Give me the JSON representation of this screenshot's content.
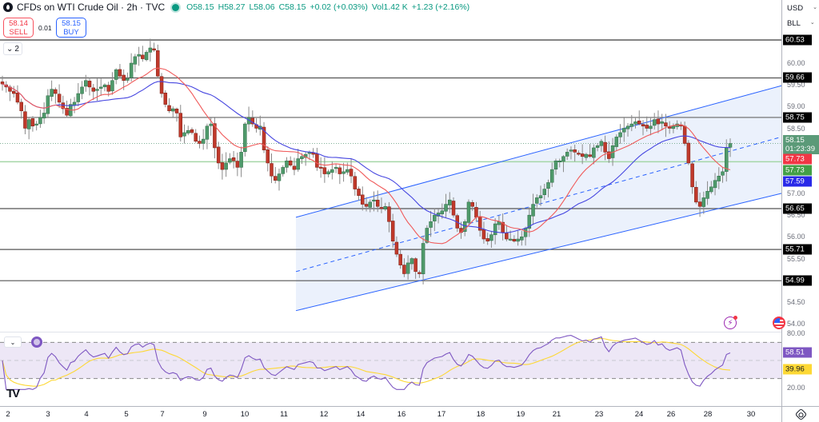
{
  "header": {
    "title": "CFDs on WTI Crude Oil · 2h · TVC",
    "ohlc": {
      "open": "O58.15",
      "high": "H58.27",
      "low": "L58.06",
      "close": "C58.15",
      "change": "+0.02 (+0.03%)",
      "volume": "Vol1.42 K",
      "vol_change": "+1.23 (+2.16%)"
    }
  },
  "trade": {
    "sell_price": "58.14",
    "sell_label": "SELL",
    "spread": "0.01",
    "buy_price": "58.15",
    "buy_label": "BUY"
  },
  "collapse": {
    "count": "2"
  },
  "price_axis": {
    "currency": "USD",
    "unit": "BLL",
    "ticks": [
      "60.00",
      "59.50",
      "59.00",
      "58.50",
      "57.00",
      "56.50",
      "56.00",
      "55.50",
      "54.50",
      "54.00"
    ],
    "labels": [
      {
        "value": "60.53",
        "color": "#000000"
      },
      {
        "value": "59.66",
        "color": "#000000"
      },
      {
        "value": "58.75",
        "color": "#000000"
      },
      {
        "value": "58.15",
        "sub": "01:23:39",
        "color": "#5b9a78"
      },
      {
        "value": "57.73",
        "color": "#f23645"
      },
      {
        "value": "57.73",
        "color": "#43a047"
      },
      {
        "value": "57.59",
        "color": "#2a2ae8"
      },
      {
        "value": "56.65",
        "color": "#000000"
      },
      {
        "value": "55.71",
        "color": "#000000"
      },
      {
        "value": "54.99",
        "color": "#000000"
      }
    ]
  },
  "rsi_axis": {
    "ticks": [
      "80.00",
      "20.00"
    ],
    "labels": [
      {
        "value": "58.51",
        "color": "#7e57c2",
        "text_color": "#ffffff"
      },
      {
        "value": "39.96",
        "color": "#fdd835",
        "text_color": "#131722"
      }
    ]
  },
  "time_axis": [
    "2",
    "3",
    "4",
    "5",
    "7",
    "9",
    "10",
    "11",
    "12",
    "14",
    "16",
    "17",
    "18",
    "19",
    "21",
    "23",
    "24",
    "26",
    "28",
    "30"
  ],
  "colors": {
    "up": "#4f9a6b",
    "down": "#c0392b",
    "ma_fast": "#f05a5a",
    "ma_slow": "#4646e0",
    "channel": "#2962ff",
    "channel_fill": "#e8eefc",
    "rsi": "#7e57c2",
    "rsi_ma": "#fdd835",
    "rsi_band": "#ede7f6"
  },
  "chart_data": {
    "type": "candlestick",
    "title": "CFDs on WTI Crude Oil · 2h · TVC",
    "xlabel": "",
    "ylabel": "USD / BLL",
    "ylim": [
      53.8,
      60.9
    ],
    "x_ticks": [
      "2",
      "3",
      "4",
      "5",
      "7",
      "9",
      "10",
      "11",
      "12",
      "14",
      "16",
      "17",
      "18",
      "19",
      "21",
      "23",
      "24",
      "26",
      "28",
      "30"
    ],
    "last": {
      "open": 58.15,
      "high": 58.27,
      "low": 58.06,
      "close": 58.15,
      "change": 0.02,
      "change_pct": 0.03
    },
    "horizontal_levels": [
      60.53,
      59.66,
      58.75,
      56.65,
      55.71,
      54.99
    ],
    "current_price_line": 58.15,
    "green_level": 57.73,
    "moving_averages": [
      {
        "name": "MA fast (red)",
        "last": 57.73
      },
      {
        "name": "MA slow (blue)",
        "last": 57.59
      }
    ],
    "channel": {
      "upper": [
        [
          370,
          56.45
        ],
        [
          977,
          59.48
        ]
      ],
      "middle": [
        [
          370,
          55.2
        ],
        [
          977,
          58.3
        ]
      ],
      "lower": [
        [
          370,
          54.3
        ],
        [
          977,
          57.0
        ]
      ]
    },
    "closes_approx": [
      59.52,
      59.45,
      59.35,
      59.3,
      59.1,
      58.9,
      58.5,
      58.7,
      58.55,
      58.6,
      58.75,
      58.85,
      59.25,
      59.4,
      59.3,
      59.1,
      58.95,
      58.8,
      59.05,
      59.1,
      59.3,
      59.45,
      59.6,
      59.45,
      59.35,
      59.4,
      59.45,
      59.5,
      59.35,
      59.6,
      59.85,
      59.7,
      59.6,
      59.65,
      60.0,
      60.15,
      60.2,
      60.1,
      60.25,
      60.35,
      60.3,
      59.7,
      59.3,
      59.05,
      58.9,
      58.95,
      58.85,
      58.3,
      58.4,
      58.45,
      58.4,
      58.2,
      58.15,
      58.25,
      58.55,
      58.6,
      58.05,
      57.7,
      57.55,
      57.7,
      57.8,
      57.75,
      57.6,
      57.95,
      58.6,
      58.75,
      58.6,
      58.5,
      58.55,
      58.0,
      57.7,
      57.4,
      57.3,
      57.45,
      57.6,
      57.75,
      57.65,
      57.55,
      57.8,
      57.85,
      57.9,
      57.95,
      57.9,
      57.6,
      57.6,
      57.45,
      57.5,
      57.55,
      57.6,
      57.45,
      57.5,
      57.55,
      57.4,
      57.1,
      56.95,
      56.75,
      56.7,
      56.8,
      56.85,
      56.7,
      56.65,
      56.7,
      56.35,
      55.9,
      55.6,
      55.35,
      55.15,
      55.4,
      55.5,
      55.2,
      55.15,
      55.85,
      56.2,
      56.35,
      56.5,
      56.55,
      56.6,
      56.75,
      56.85,
      56.5,
      56.2,
      56.1,
      56.35,
      56.8,
      56.7,
      56.45,
      56.15,
      55.95,
      55.9,
      56.05,
      56.3,
      56.35,
      56.1,
      55.95,
      55.95,
      55.9,
      55.95,
      56.0,
      56.2,
      56.5,
      56.75,
      56.9,
      56.95,
      57.1,
      57.25,
      57.55,
      57.75,
      57.75,
      57.85,
      57.95,
      58.0,
      57.95,
      57.9,
      57.85,
      57.9,
      57.85,
      58.05,
      58.1,
      58.2,
      57.95,
      57.8,
      58.1,
      58.3,
      58.4,
      58.5,
      58.55,
      58.6,
      58.65,
      58.6,
      58.55,
      58.5,
      58.55,
      58.7,
      58.6,
      58.65,
      58.55,
      58.5,
      58.55,
      58.6,
      58.55,
      58.15,
      57.7,
      57.15,
      56.8,
      56.7,
      56.9,
      57.05,
      57.15,
      57.3,
      57.4,
      57.5,
      58.05,
      58.15
    ],
    "rsi": {
      "name": "RSI",
      "ylim": [
        0,
        100
      ],
      "bands": [
        30,
        50,
        70
      ],
      "last_rsi": 58.51,
      "last_rsi_ma": 39.96,
      "ticks": [
        "80.00",
        "20.00"
      ]
    }
  }
}
